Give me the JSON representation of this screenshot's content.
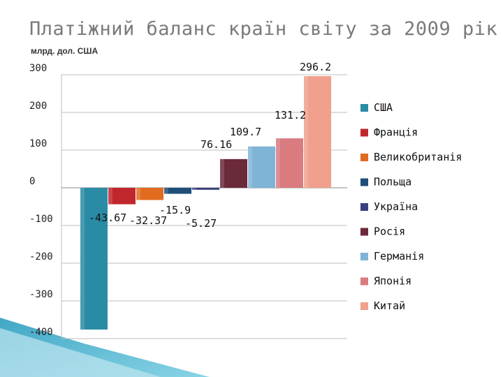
{
  "title": "Платіжний баланс країн світу за 2009 рік",
  "subtitle": "млрд. дол. США",
  "chart_data": {
    "type": "bar",
    "categories": [
      "США",
      "Франція",
      "Великобританія",
      "Польща",
      "Україна",
      "Росія",
      "Германія",
      "Японія",
      "Китай"
    ],
    "values": [
      -376,
      -43.67,
      -32.37,
      -15.9,
      -5.27,
      76.16,
      109.7,
      131.2,
      296.2
    ],
    "data_labels": [
      "",
      "-43.67",
      "-32.37",
      "-15.9",
      "-5.27",
      "76.16",
      "109.7",
      "131.2",
      "296.2"
    ],
    "colors": [
      "#2a8ba5",
      "#c0272d",
      "#e26b1f",
      "#1f4e79",
      "#3a3f7d",
      "#6b2a3a",
      "#7fb4d6",
      "#d97b7f",
      "#f0a08c"
    ],
    "ylim": [
      -400,
      300
    ],
    "yticks": [
      300,
      200,
      100,
      0,
      -100,
      -200,
      -300,
      -400
    ],
    "ytick_labels": [
      "300",
      "200",
      "100",
      "0",
      "-100",
      "-200",
      "-300",
      "-400"
    ],
    "xlabel": "",
    "ylabel": "",
    "grid": true,
    "legend_position": "right"
  }
}
